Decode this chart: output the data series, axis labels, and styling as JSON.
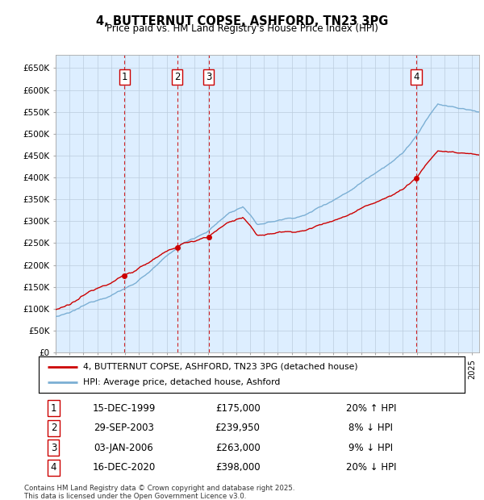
{
  "title": "4, BUTTERNUT COPSE, ASHFORD, TN23 3PG",
  "subtitle": "Price paid vs. HM Land Registry's House Price Index (HPI)",
  "ylabel_ticks": [
    "£0",
    "£50K",
    "£100K",
    "£150K",
    "£200K",
    "£250K",
    "£300K",
    "£350K",
    "£400K",
    "£450K",
    "£500K",
    "£550K",
    "£600K",
    "£650K"
  ],
  "ylim": [
    0,
    680000
  ],
  "transactions": [
    {
      "num": 1,
      "date": "15-DEC-1999",
      "price": 175000,
      "rel": "20% ↑ HPI",
      "date_num": 1999.96
    },
    {
      "num": 2,
      "date": "29-SEP-2003",
      "price": 239950,
      "rel": "8% ↓ HPI",
      "date_num": 2003.75
    },
    {
      "num": 3,
      "date": "03-JAN-2006",
      "price": 263000,
      "rel": "9% ↓ HPI",
      "date_num": 2006.01
    },
    {
      "num": 4,
      "date": "16-DEC-2020",
      "price": 398000,
      "rel": "20% ↓ HPI",
      "date_num": 2020.96
    }
  ],
  "legend_line1": "4, BUTTERNUT COPSE, ASHFORD, TN23 3PG (detached house)",
  "legend_line2": "HPI: Average price, detached house, Ashford",
  "footnote1": "Contains HM Land Registry data © Crown copyright and database right 2025.",
  "footnote2": "This data is licensed under the Open Government Licence v3.0.",
  "hpi_color": "#7bafd4",
  "price_color": "#cc0000",
  "background_color": "#ddeeff",
  "plot_bg": "#ffffff",
  "xmin": 1995.0,
  "xmax": 2025.5
}
